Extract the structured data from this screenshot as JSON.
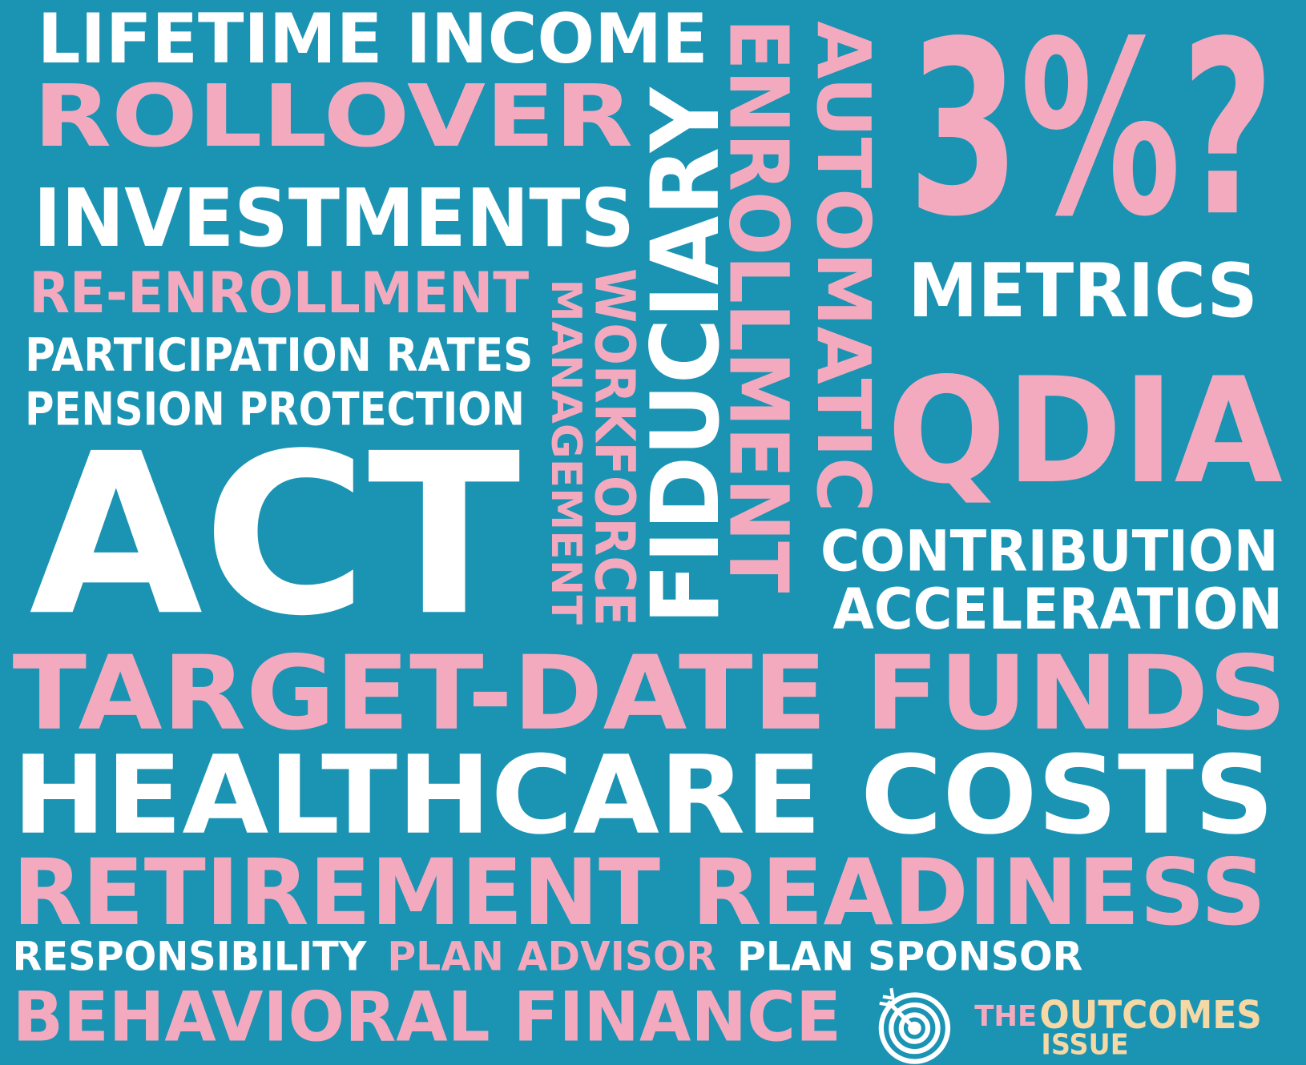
{
  "words": [
    "LIFETIME INCOME",
    "ROLLOVER",
    "INVESTMENTS",
    "RE-ENROLLMENT",
    "PARTICIPATION RATES",
    "PENSION PROTECTION",
    "ACT",
    "MANAGEMENT",
    "WORKFORCE",
    "FIDUCIARY",
    "ENROLLMENT",
    "AUTOMATIC",
    "3%?",
    "METRICS",
    "QDIA",
    "CONTRIBUTION",
    "ACCELERATION",
    "TARGET-DATE FUNDS",
    "HEALTHCARE COSTS",
    "RETIREMENT READINESS",
    "RESPONSIBILITY",
    "PLAN ADVISOR",
    "PLAN SPONSOR",
    "BEHAVIORAL FINANCE"
  ],
  "logo": {
    "the": "THE",
    "outcomes": "OUTCOMES",
    "issue": "ISSUE"
  }
}
